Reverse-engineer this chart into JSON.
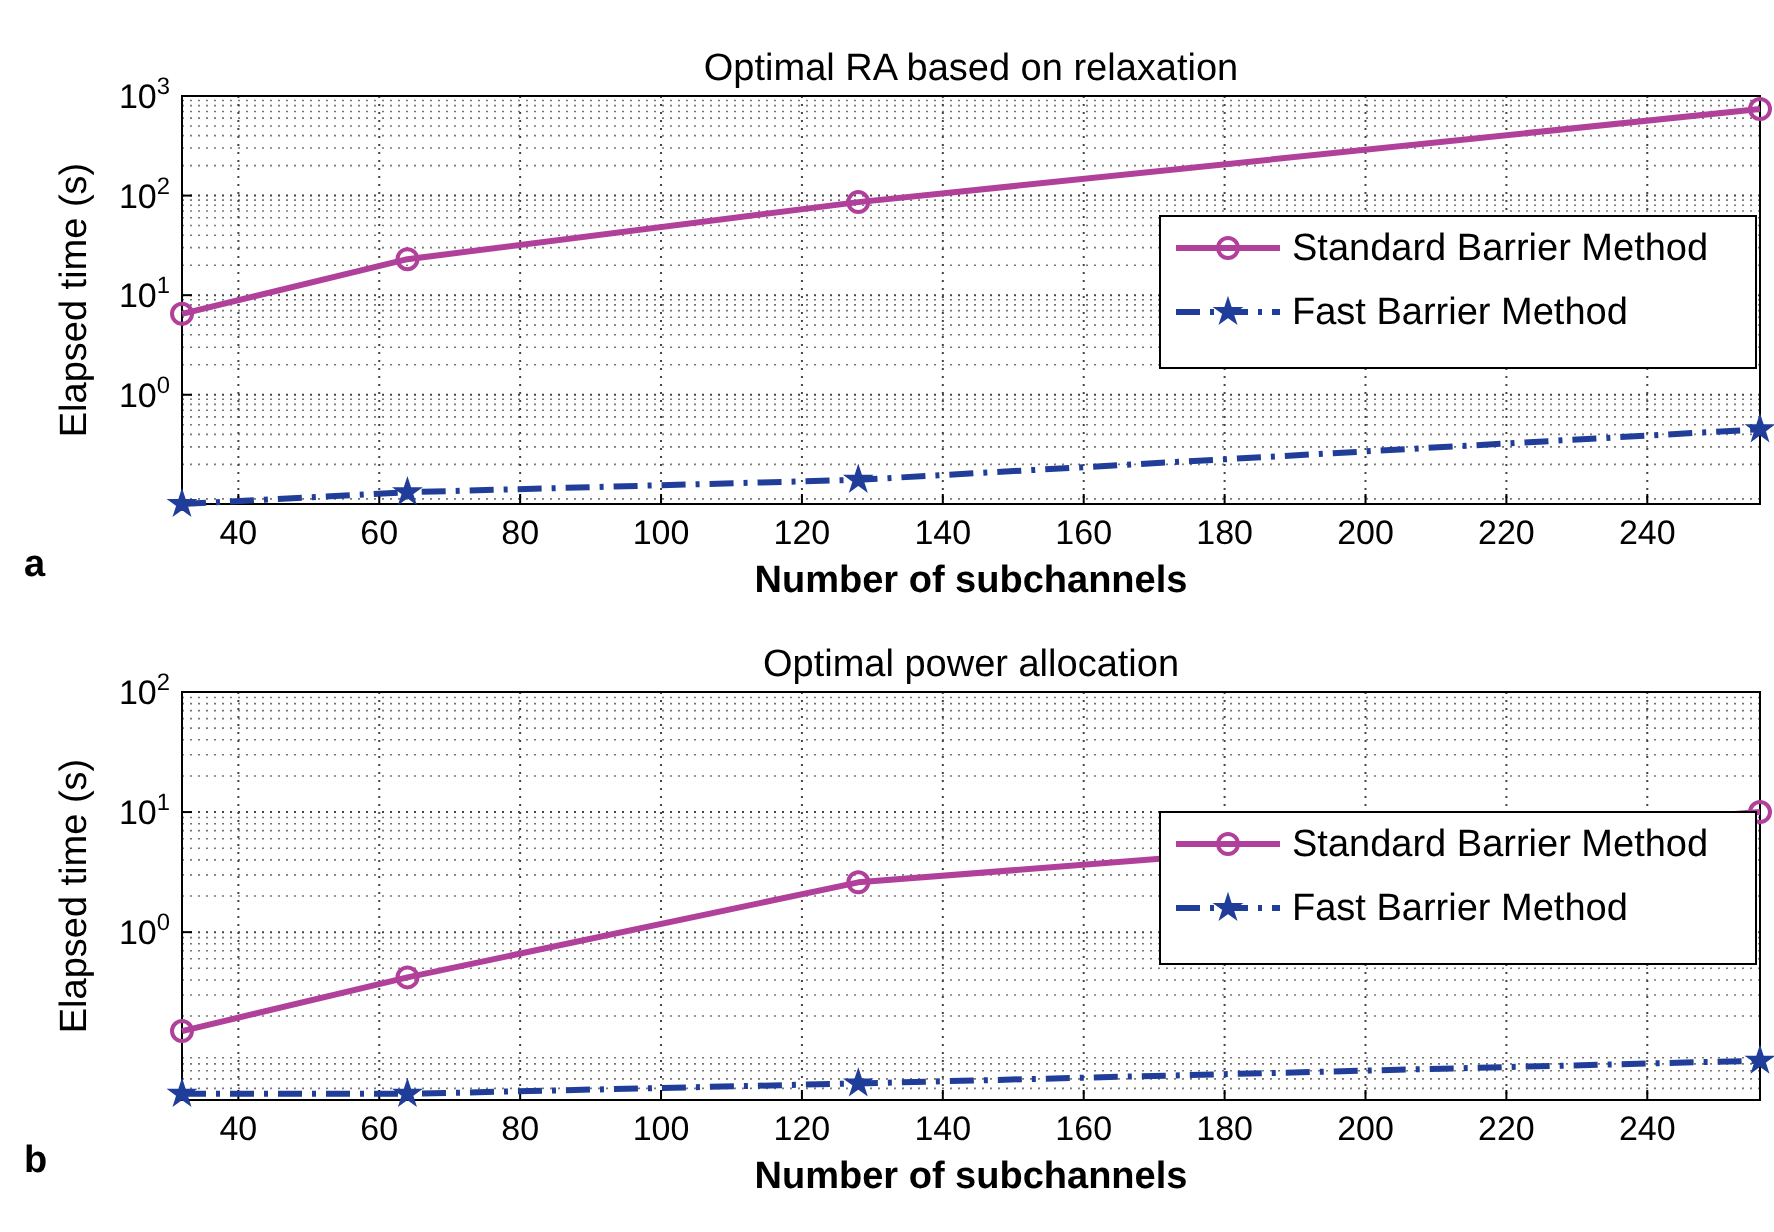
{
  "chart_data": [
    {
      "type": "line",
      "title": "Optimal RA based on relaxation",
      "xlabel": "Number of subchannels",
      "ylabel": "Elapsed time (s)",
      "x": [
        32,
        64,
        128,
        256
      ],
      "xlim": [
        32,
        256
      ],
      "xticks": [
        40,
        60,
        80,
        100,
        120,
        140,
        160,
        180,
        200,
        220,
        240
      ],
      "ylim": [
        0.08,
        1000
      ],
      "yticks": [
        {
          "value": 1,
          "label": "10$^{0}$"
        },
        {
          "value": 10,
          "label": "10$^{1}$"
        },
        {
          "value": 100,
          "label": "10$^{2}$"
        },
        {
          "value": 1000,
          "label": "10$^{3}$"
        }
      ],
      "log": "y",
      "grid": true,
      "legend": "right",
      "annotations": [
        "a"
      ],
      "series": [
        {
          "name": "Standard Barrier Method",
          "color": "#b0409a",
          "values": [
            6.5,
            23,
            86,
            740
          ],
          "marker": "circle",
          "line_style": "solid"
        },
        {
          "name": "Fast Barrier Method",
          "color": "#1f3d99",
          "values": [
            0.08,
            0.105,
            0.14,
            0.45
          ],
          "marker": "star",
          "line_style": "dashdot"
        }
      ]
    },
    {
      "type": "line",
      "title": "Optimal power allocation",
      "xlabel": "Number of subchannels",
      "ylabel": "Elapsed time (s)",
      "x": [
        32,
        64,
        128,
        256
      ],
      "xlim": [
        32,
        256
      ],
      "xticks": [
        40,
        60,
        80,
        100,
        120,
        140,
        160,
        180,
        200,
        220,
        240
      ],
      "ylim": [
        0.04,
        100
      ],
      "yticks": [
        {
          "value": 1,
          "label": "10$^{0}$"
        },
        {
          "value": 10,
          "label": "10$^{1}$"
        },
        {
          "value": 100,
          "label": "10$^{2}$"
        }
      ],
      "log": "y",
      "grid": true,
      "legend": "right",
      "annotations": [
        "b"
      ],
      "series": [
        {
          "name": "Standard Barrier Method",
          "color": "#b0409a",
          "values": [
            0.15,
            0.42,
            2.6,
            10
          ],
          "marker": "circle",
          "line_style": "solid"
        },
        {
          "name": "Fast Barrier Method",
          "color": "#1f3d99",
          "values": [
            0.045,
            0.045,
            0.055,
            0.085
          ],
          "marker": "star",
          "line_style": "dashdot"
        }
      ]
    }
  ]
}
